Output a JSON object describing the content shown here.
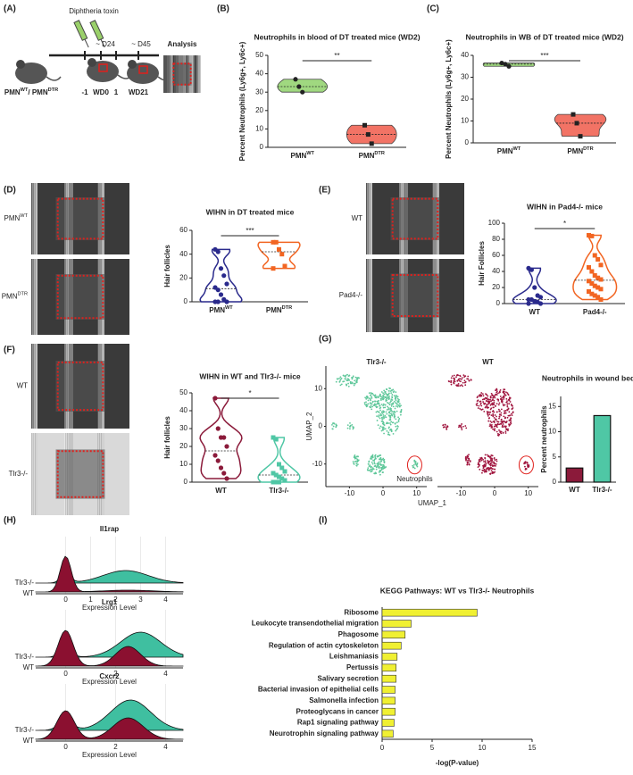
{
  "panel_labels": [
    "(A)",
    "(B)",
    "(C)",
    "(D)",
    "(E)",
    "(F)",
    "(G)",
    "(H)",
    "(I)"
  ],
  "schematic": {
    "agent": "Diphtheria toxin",
    "timepoints": [
      "~ D24",
      "~ D45"
    ],
    "analysis": "Analysis",
    "days": [
      "-1",
      "WD0",
      "1",
      "WD21"
    ],
    "mouse_label": [
      {
        "text": "PMN",
        "sup": "WT"
      },
      {
        "text": "/ PMN",
        "sup": "DTR"
      }
    ]
  },
  "photo_labels": {
    "D": [
      {
        "text": "PMN",
        "sup": "WT"
      },
      {
        "text": "PMN",
        "sup": "DTR"
      }
    ],
    "E": [
      "WT",
      "Pad4-/-"
    ],
    "F": [
      "WT",
      "Tlr3-/-"
    ]
  },
  "chart_data": [
    {
      "type": "violin",
      "title": "Neutrophils in blood of DT treated mice (WD2)",
      "ylabel": "Percent Neutrophils (Ly6g+, Ly6c+)",
      "categories": [
        {
          "text": "PMN",
          "sup": "WT"
        },
        {
          "text": "PMN",
          "sup": "DTR"
        }
      ],
      "series": [
        {
          "color": "#8fd16a",
          "marker": "circle",
          "values": [
            37,
            33,
            30
          ]
        },
        {
          "color": "#f05a4a",
          "marker": "square",
          "values": [
            12,
            7,
            2
          ]
        }
      ],
      "ylim": [
        0,
        50
      ],
      "yticks": [
        0,
        10,
        20,
        30,
        40,
        50
      ],
      "filled": true,
      "significance": "**"
    },
    {
      "type": "violin",
      "title": "Neutrophils in WB of DT treated mice (WD2)",
      "ylabel": "Percent Neutrophils (Ly6g+, Ly6c+)",
      "categories": [
        {
          "text": "PMN",
          "sup": "WT"
        },
        {
          "text": "PMN",
          "sup": "DTR"
        }
      ],
      "series": [
        {
          "color": "#8fd16a",
          "marker": "circle",
          "values": [
            36.5,
            36,
            35
          ]
        },
        {
          "color": "#f05a4a",
          "marker": "square",
          "values": [
            13,
            9,
            3
          ]
        }
      ],
      "ylim": [
        0,
        40
      ],
      "yticks": [
        0,
        10,
        20,
        30,
        40
      ],
      "filled": true,
      "significance": "***"
    },
    {
      "type": "violin",
      "title": "WIHN in DT treated mice",
      "ylabel": "Hair follicles",
      "categories": [
        {
          "text": "PMN",
          "sup": "WT"
        },
        {
          "text": "PMN",
          "sup": "DTR"
        }
      ],
      "series": [
        {
          "color": "#2a2a8c",
          "marker": "circle",
          "values": [
            44,
            42,
            28,
            22,
            15,
            12,
            10,
            6,
            2,
            0,
            0,
            0
          ]
        },
        {
          "color": "#f26522",
          "marker": "square",
          "values": [
            50,
            50,
            44,
            40,
            30,
            28
          ]
        }
      ],
      "ylim": [
        0,
        60
      ],
      "yticks": [
        0,
        20,
        40,
        60
      ],
      "filled": false,
      "significance": "***"
    },
    {
      "type": "violin",
      "title": "WIHN in Pad4-/- mice",
      "ylabel": "Hair Follicles",
      "categories": [
        "WT",
        "Pad4-/-"
      ],
      "series": [
        {
          "color": "#2a2a8c",
          "marker": "circle",
          "values": [
            44,
            42,
            20,
            10,
            8,
            5,
            5,
            3,
            2,
            0,
            0
          ]
        },
        {
          "color": "#f26522",
          "marker": "square",
          "values": [
            85,
            84,
            60,
            55,
            48,
            45,
            40,
            35,
            32,
            30,
            28,
            25,
            22,
            20,
            18,
            15,
            12,
            10,
            8,
            5
          ]
        }
      ],
      "ylim": [
        0,
        100
      ],
      "yticks": [
        0,
        20,
        40,
        60,
        80,
        100
      ],
      "filled": false,
      "significance": "*"
    },
    {
      "type": "violin",
      "title": "WIHN in WT and Tlr3-/- mice",
      "ylabel": "Hair follicles",
      "categories": [
        "WT",
        "Tlr3-/-"
      ],
      "series": [
        {
          "color": "#8b1a3a",
          "marker": "circle",
          "values": [
            47,
            30,
            25,
            25,
            20,
            15,
            12,
            8,
            5,
            2
          ]
        },
        {
          "color": "#4fc7a5",
          "marker": "square",
          "values": [
            25,
            24,
            10,
            8,
            6,
            5,
            4,
            3,
            2,
            1,
            0,
            0,
            0
          ]
        }
      ],
      "ylim": [
        0,
        50
      ],
      "yticks": [
        0,
        10,
        20,
        30,
        40,
        50
      ],
      "filled": false,
      "significance": "*"
    },
    {
      "type": "umap",
      "panels": [
        {
          "title": "Tlr3-/-",
          "color": "#5fc79a"
        },
        {
          "title": "WT",
          "color": "#a0153e"
        }
      ],
      "xlabel": "UMAP_1",
      "ylabel": "UMAP_2",
      "xlim": [
        -17,
        13
      ],
      "xticks": [
        -10,
        0,
        10
      ],
      "ylim": [
        -16,
        16
      ],
      "yticks": [
        -10,
        0,
        10
      ],
      "annotation": "Neutrophils"
    },
    {
      "type": "bar",
      "title": "Neutrophils in wound bed",
      "ylabel": "Percent neutrophils",
      "categories": [
        "WT",
        "Tlr3-/-"
      ],
      "values": [
        2.8,
        13.2
      ],
      "colors": [
        "#8b1a3a",
        "#4fc7a5"
      ],
      "ylim": [
        0,
        17
      ],
      "yticks": [
        0,
        5,
        10,
        15
      ]
    },
    {
      "type": "ridgeline",
      "groups": [
        "Tlr3-/-",
        "WT"
      ],
      "colors": [
        "#3fbfa0",
        "#8b1030"
      ],
      "xlabel": "Expression Level",
      "xlim": [
        -1.2,
        4.7
      ],
      "panels": [
        {
          "title": "Il1rap",
          "xticks": [
            0,
            1,
            2,
            3,
            4
          ]
        },
        {
          "title": "Lrg1",
          "xticks": [
            0,
            2,
            4
          ]
        },
        {
          "title": "Cxcr2",
          "xticks": [
            0,
            2,
            4
          ]
        }
      ]
    },
    {
      "type": "hbar",
      "title": "KEGG Pathways: WT vs Tlr3-/- Neutrophils",
      "xlabel": "-log(P-value)",
      "categories": [
        "Ribosome",
        "Leukocyte transendothelial migration",
        "Phagosome",
        "Regulation of actin cytoskeleton",
        "Leishmaniasis",
        "Pertussis",
        "Salivary secretion",
        "Bacterial invasion of epithelial cells",
        "Salmonella infection",
        "Proteoglycans in cancer",
        "Rap1 signaling pathway",
        "Neurotrophin signaling pathway"
      ],
      "values": [
        9.5,
        2.9,
        2.3,
        1.9,
        1.5,
        1.4,
        1.4,
        1.3,
        1.3,
        1.3,
        1.2,
        1.1
      ],
      "color": "#f0f032",
      "xlim": [
        0,
        15
      ],
      "xticks": [
        0,
        5,
        10,
        15
      ]
    }
  ]
}
